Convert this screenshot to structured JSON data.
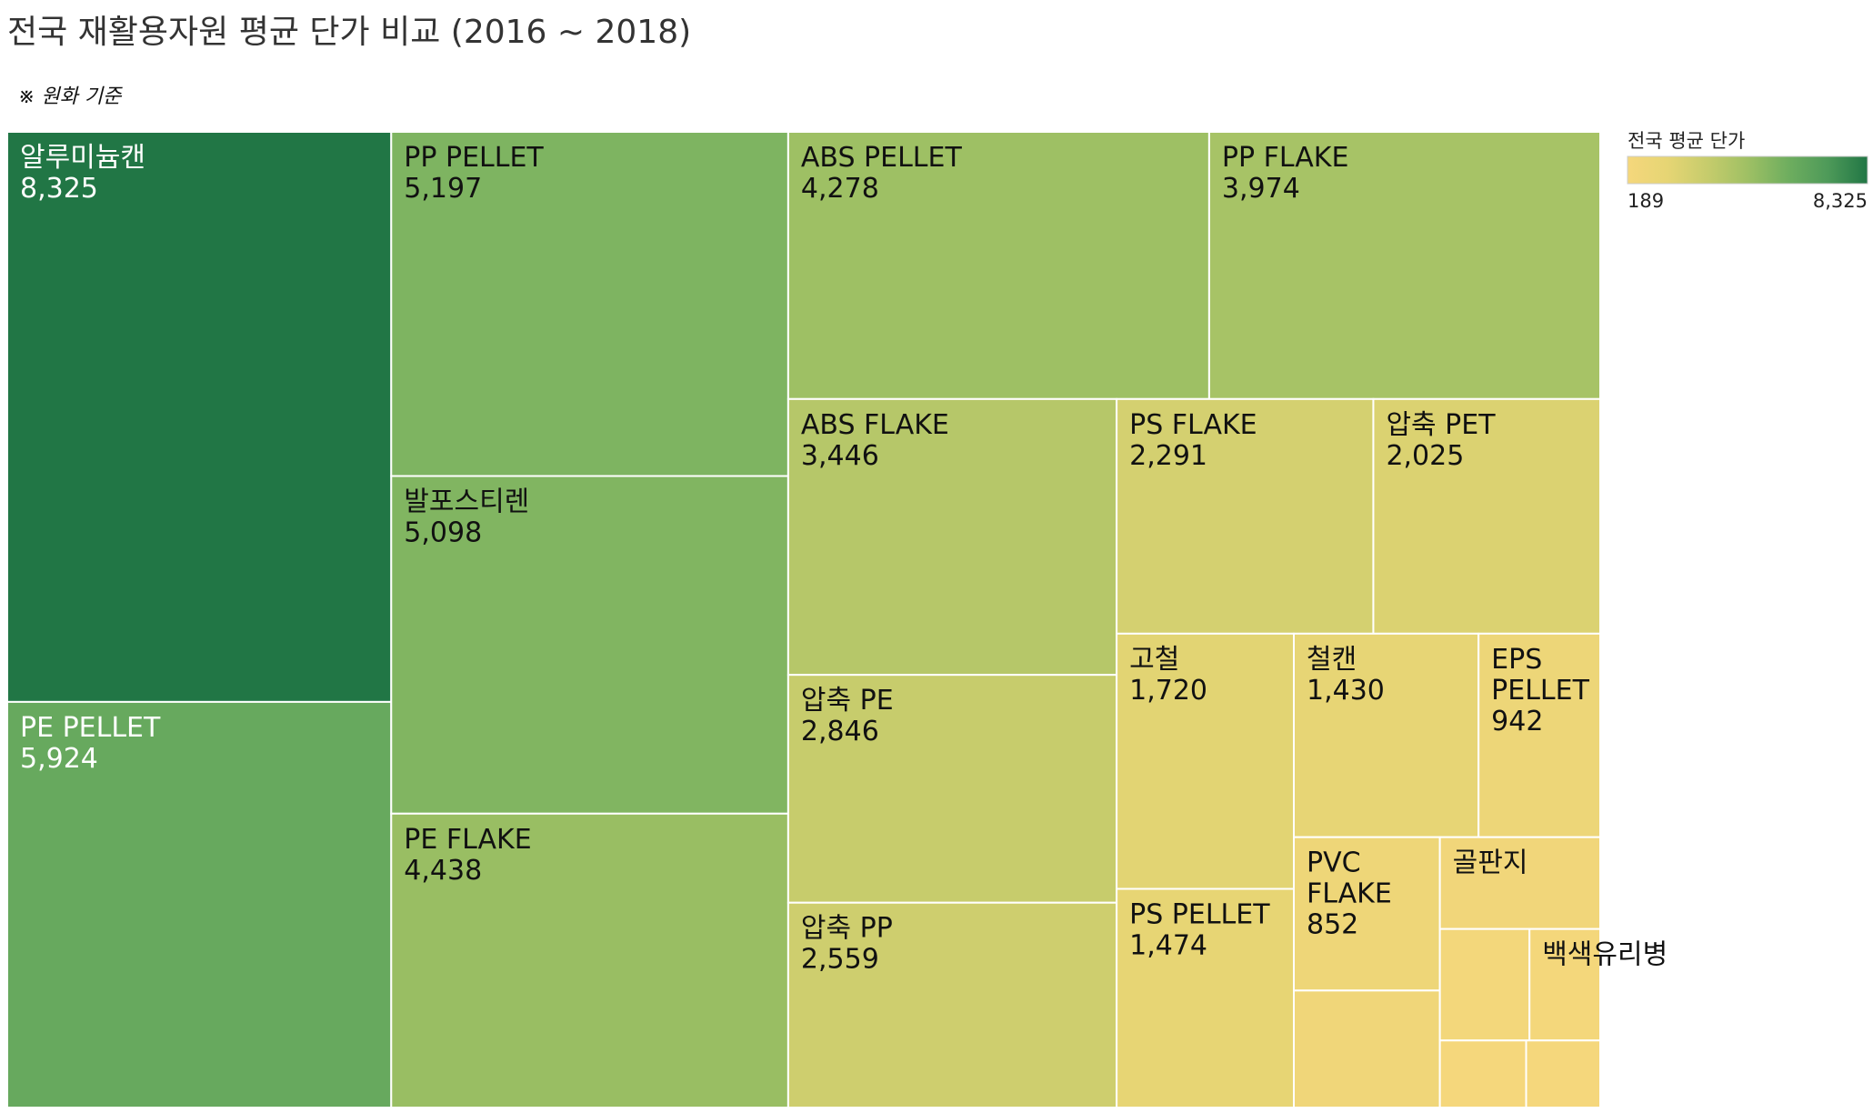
{
  "title": "전국 재활용자원 평균 단가 비교 (2016 ~ 2018)",
  "subtitle": "※ 원화 기준",
  "colors": {
    "scale": [
      "#f5d77c",
      "#e6d574",
      "#c6cc6c",
      "#9fc064",
      "#6fae5f",
      "#4e9a59",
      "#217645"
    ],
    "text_light": "#ffffff",
    "text_dark": "#111111",
    "border": "#ffffff"
  },
  "chart_data": {
    "type": "treemap",
    "title": "전국 재활용자원 평균 단가 비교 (2016 ~ 2018)",
    "legend": {
      "title": "전국 평균 단가",
      "min_label": "189",
      "max_label": "8,325",
      "min": 189,
      "max": 8325,
      "placement": "top-right"
    },
    "items": [
      {
        "name": "알루미늄캔",
        "label": "8,325",
        "value": 8325
      },
      {
        "name": "PE PELLET",
        "label": "5,924",
        "value": 5924
      },
      {
        "name": "PP PELLET",
        "label": "5,197",
        "value": 5197
      },
      {
        "name": "발포스티렌",
        "label": "5,098",
        "value": 5098
      },
      {
        "name": "PE FLAKE",
        "label": "4,438",
        "value": 4438
      },
      {
        "name": "ABS PELLET",
        "label": "4,278",
        "value": 4278
      },
      {
        "name": "PP FLAKE",
        "label": "3,974",
        "value": 3974
      },
      {
        "name": "ABS FLAKE",
        "label": "3,446",
        "value": 3446
      },
      {
        "name": "압축 PE",
        "label": "2,846",
        "value": 2846
      },
      {
        "name": "압축 PP",
        "label": "2,559",
        "value": 2559
      },
      {
        "name": "PS FLAKE",
        "label": "2,291",
        "value": 2291
      },
      {
        "name": "압축 PET",
        "label": "2,025",
        "value": 2025
      },
      {
        "name": "고철",
        "label": "1,720",
        "value": 1720
      },
      {
        "name": "PS PELLET",
        "label": "1,474",
        "value": 1474
      },
      {
        "name": "철캔",
        "label": "1,430",
        "value": 1430
      },
      {
        "name": "EPS PELLET",
        "label": "942",
        "value": 942
      },
      {
        "name": "PVC FLAKE",
        "label": "852",
        "value": 852
      },
      {
        "name": "",
        "label": "",
        "value": 650
      },
      {
        "name": "골판지",
        "label": "",
        "value": 560
      },
      {
        "name": "",
        "label": "",
        "value": 380
      },
      {
        "name": "백색유리병",
        "label": "",
        "value": 300
      },
      {
        "name": "",
        "label": "",
        "value": 220
      },
      {
        "name": "",
        "label": "",
        "value": 189
      }
    ]
  }
}
